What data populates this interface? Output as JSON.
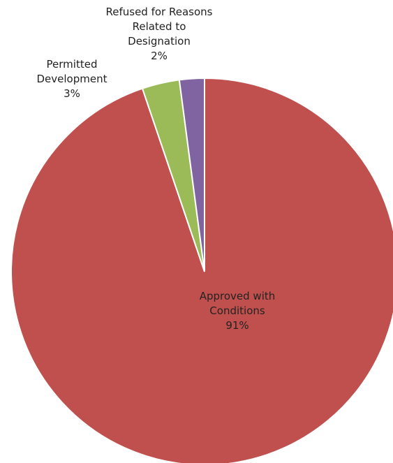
{
  "chart_data": {
    "type": "pie",
    "categories": [
      "Approved with Conditions",
      "Permitted Development",
      "Refused for Reasons Related to Designation"
    ],
    "values": [
      91,
      3,
      2
    ],
    "value_labels": [
      "91%",
      "3%",
      "2%"
    ],
    "colors": [
      "#c0504d",
      "#9bbb59",
      "#8064a2"
    ]
  }
}
